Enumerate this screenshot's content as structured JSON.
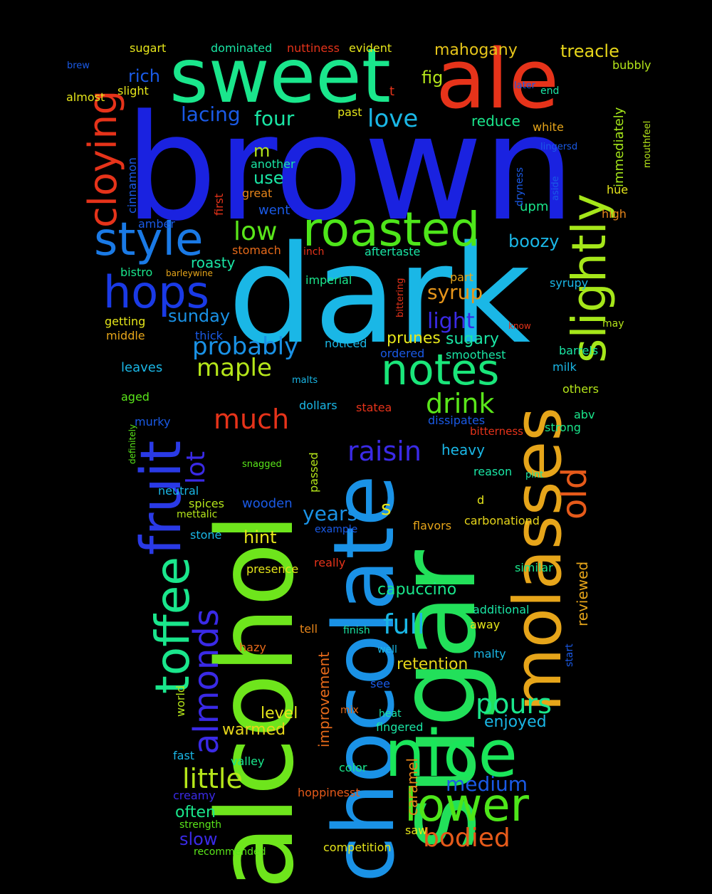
{
  "words": [
    {
      "text": "brown",
      "color": "#1a22e0"
    },
    {
      "text": "dark",
      "color": "#1ab7e6"
    },
    {
      "text": "alcohol",
      "color": "#6ee51c"
    },
    {
      "text": "sugar",
      "color": "#22e05a"
    },
    {
      "text": "chocolate",
      "color": "#1a92e6"
    },
    {
      "text": "sweet",
      "color": "#1ae68c"
    },
    {
      "text": "ale",
      "color": "#e6331a"
    },
    {
      "text": "molasses",
      "color": "#e6a51a"
    },
    {
      "text": "nice",
      "color": "#1ae65a"
    },
    {
      "text": "fruit",
      "color": "#2a3ae6"
    },
    {
      "text": "toffee",
      "color": "#1ae68c"
    },
    {
      "text": "slightly",
      "color": "#a5e61a"
    },
    {
      "text": "roasted",
      "color": "#4ee61a"
    },
    {
      "text": "notes",
      "color": "#1ae67a"
    },
    {
      "text": "lower",
      "color": "#4ee61a"
    },
    {
      "text": "hops",
      "color": "#1a3ae6"
    },
    {
      "text": "style",
      "color": "#1a7ae6"
    },
    {
      "text": "cloying",
      "color": "#e6331a"
    },
    {
      "text": "almonds",
      "color": "#3a2ae6"
    },
    {
      "text": "old",
      "color": "#e65a1a"
    },
    {
      "text": "probably",
      "color": "#1a92e6"
    },
    {
      "text": "maple",
      "color": "#b5e61a"
    },
    {
      "text": "drink",
      "color": "#5ae61a"
    },
    {
      "text": "raisin",
      "color": "#3a2ae6"
    },
    {
      "text": "much",
      "color": "#e6331a"
    },
    {
      "text": "pours",
      "color": "#1ae68c"
    },
    {
      "text": "full",
      "color": "#1ab7e6"
    },
    {
      "text": "little",
      "color": "#b5e61a"
    },
    {
      "text": "bodied",
      "color": "#e65a1a"
    },
    {
      "text": "love",
      "color": "#1ab7e6"
    },
    {
      "text": "low",
      "color": "#5ae61a"
    },
    {
      "text": "lot",
      "color": "#3a2ae6"
    },
    {
      "text": "medium",
      "color": "#1a5ae6"
    },
    {
      "text": "syrup",
      "color": "#e6951a"
    },
    {
      "text": "years",
      "color": "#1a92e6"
    },
    {
      "text": "s",
      "color": "#e6e61a"
    },
    {
      "text": "light",
      "color": "#3a2ae6"
    },
    {
      "text": "lacing",
      "color": "#1a5ae6"
    },
    {
      "text": "four",
      "color": "#1ae6a5"
    },
    {
      "text": "treacle",
      "color": "#e6d51a"
    },
    {
      "text": "mahogany",
      "color": "#e6c51a"
    },
    {
      "text": "m",
      "color": "#b5e61a"
    },
    {
      "text": "use",
      "color": "#1ae6a5"
    },
    {
      "text": "sunday",
      "color": "#1a92e6"
    },
    {
      "text": "boozy",
      "color": "#1ab7e6"
    },
    {
      "text": "rich",
      "color": "#1a5ae6"
    },
    {
      "text": "fig",
      "color": "#b5e61a"
    },
    {
      "text": "prunes",
      "color": "#e6e61a"
    },
    {
      "text": "sugary",
      "color": "#1ae6a5"
    },
    {
      "text": "heavy",
      "color": "#1ab7e6"
    },
    {
      "text": "hint",
      "color": "#e6e61a"
    },
    {
      "text": "capuccino",
      "color": "#1ae68c"
    },
    {
      "text": "retention",
      "color": "#e6d51a"
    },
    {
      "text": "enjoyed",
      "color": "#1ab7e6"
    },
    {
      "text": "level",
      "color": "#e6e61a"
    },
    {
      "text": "warmed",
      "color": "#e6d51a"
    },
    {
      "text": "wooden",
      "color": "#1a5ae6"
    },
    {
      "text": "roasty",
      "color": "#1ae6a5"
    },
    {
      "text": "immediately",
      "color": "#a5e61a"
    },
    {
      "text": "reviewed",
      "color": "#e6a51a"
    },
    {
      "text": "improvement",
      "color": "#e66a1a"
    },
    {
      "text": "caramel",
      "color": "#e6851a"
    },
    {
      "text": "often",
      "color": "#1ae68c"
    },
    {
      "text": "slow",
      "color": "#3a2ae6"
    },
    {
      "text": "upm",
      "color": "#1ae68c"
    },
    {
      "text": "reduce",
      "color": "#1ae68c"
    },
    {
      "text": "went",
      "color": "#1a5ae6"
    },
    {
      "text": "dominated",
      "color": "#1ae6a5"
    },
    {
      "text": "nuttiness",
      "color": "#e6331a"
    },
    {
      "text": "evident",
      "color": "#e6e61a"
    },
    {
      "text": "sugart",
      "color": "#e6e61a"
    },
    {
      "text": "brew",
      "color": "#1a5ae6"
    },
    {
      "text": "almost",
      "color": "#e6e61a"
    },
    {
      "text": "slight",
      "color": "#e6e61a"
    },
    {
      "text": "t",
      "color": "#e6331a"
    },
    {
      "text": "past",
      "color": "#e6e61a"
    },
    {
      "text": "later",
      "color": "#1a5ae6"
    },
    {
      "text": "end",
      "color": "#1ae6a5"
    },
    {
      "text": "bubbly",
      "color": "#b5e61a"
    },
    {
      "text": "white",
      "color": "#e6a51a"
    },
    {
      "text": "mouthfeel",
      "color": "#b5e61a"
    },
    {
      "text": "lingersd",
      "color": "#1a5ae6"
    },
    {
      "text": "cinnamon",
      "color": "#1a5ae6"
    },
    {
      "text": "first",
      "color": "#e6331a"
    },
    {
      "text": "another",
      "color": "#1ae6a5"
    },
    {
      "text": "great",
      "color": "#e6851a"
    },
    {
      "text": "dryness",
      "color": "#1a5ae6"
    },
    {
      "text": "aside",
      "color": "#1a5ae6"
    },
    {
      "text": "hue",
      "color": "#e6e61a"
    },
    {
      "text": "high",
      "color": "#e6851a"
    },
    {
      "text": "amber",
      "color": "#1a5ae6"
    },
    {
      "text": "stomach",
      "color": "#e66a1a"
    },
    {
      "text": "inch",
      "color": "#e6331a"
    },
    {
      "text": "aftertaste",
      "color": "#1ae6a5"
    },
    {
      "text": "bistro",
      "color": "#1ae68c"
    },
    {
      "text": "barleywine",
      "color": "#e6a51a"
    },
    {
      "text": "imperial",
      "color": "#1ae68c"
    },
    {
      "text": "part",
      "color": "#e6a51a"
    },
    {
      "text": "syrupy",
      "color": "#1ab7e6"
    },
    {
      "text": "bittering",
      "color": "#e6331a"
    },
    {
      "text": "getting",
      "color": "#e6e61a"
    },
    {
      "text": "middle",
      "color": "#e6a51a"
    },
    {
      "text": "thick",
      "color": "#1a5ae6"
    },
    {
      "text": "noticed",
      "color": "#1ab7e6"
    },
    {
      "text": "know",
      "color": "#e6331a"
    },
    {
      "text": "may",
      "color": "#b5e61a"
    },
    {
      "text": "ordered",
      "color": "#1a5ae6"
    },
    {
      "text": "smoothest",
      "color": "#1ae6a5"
    },
    {
      "text": "barrels",
      "color": "#1ae6a5"
    },
    {
      "text": "leaves",
      "color": "#1ab7e6"
    },
    {
      "text": "milk",
      "color": "#1ab7e6"
    },
    {
      "text": "malts",
      "color": "#1ab7e6"
    },
    {
      "text": "aged",
      "color": "#5ae61a"
    },
    {
      "text": "others",
      "color": "#b5e61a"
    },
    {
      "text": "definitely",
      "color": "#5ae61a"
    },
    {
      "text": "dollars",
      "color": "#1ab7e6"
    },
    {
      "text": "statea",
      "color": "#e6331a"
    },
    {
      "text": "abv",
      "color": "#1ae68c"
    },
    {
      "text": "murky",
      "color": "#1a5ae6"
    },
    {
      "text": "dissipates",
      "color": "#1a5ae6"
    },
    {
      "text": "strong",
      "color": "#1ae68c"
    },
    {
      "text": "bitterness",
      "color": "#e6331a"
    },
    {
      "text": "snagged",
      "color": "#5ae61a"
    },
    {
      "text": "passed",
      "color": "#b5e61a"
    },
    {
      "text": "reason",
      "color": "#1ae6a5"
    },
    {
      "text": "pint",
      "color": "#1ae6a5"
    },
    {
      "text": "neutral",
      "color": "#1ab7e6"
    },
    {
      "text": "d",
      "color": "#e6e61a"
    },
    {
      "text": "spices",
      "color": "#b5e61a"
    },
    {
      "text": "mettalic",
      "color": "#b5e61a"
    },
    {
      "text": "carbonationd",
      "color": "#e6d51a"
    },
    {
      "text": "example",
      "color": "#1a5ae6"
    },
    {
      "text": "flavors",
      "color": "#e6a51a"
    },
    {
      "text": "stone",
      "color": "#1ab7e6"
    },
    {
      "text": "presence",
      "color": "#e6e61a"
    },
    {
      "text": "really",
      "color": "#e6331a"
    },
    {
      "text": "similar",
      "color": "#1ae68c"
    },
    {
      "text": "additional",
      "color": "#1ae6a5"
    },
    {
      "text": "tell",
      "color": "#e6851a"
    },
    {
      "text": "finish",
      "color": "#1ae6a5"
    },
    {
      "text": "away",
      "color": "#e6e61a"
    },
    {
      "text": "start",
      "color": "#1a5ae6"
    },
    {
      "text": "hazy",
      "color": "#e66a1a"
    },
    {
      "text": "well",
      "color": "#1ab7e6"
    },
    {
      "text": "malty",
      "color": "#1ab7e6"
    },
    {
      "text": "world",
      "color": "#b5e61a"
    },
    {
      "text": "see",
      "color": "#1a5ae6"
    },
    {
      "text": "mix",
      "color": "#e66a1a"
    },
    {
      "text": "heat",
      "color": "#1ae6a5"
    },
    {
      "text": "fingered",
      "color": "#1ae6a5"
    },
    {
      "text": "fast",
      "color": "#1ab7e6"
    },
    {
      "text": "valley",
      "color": "#1ae68c"
    },
    {
      "text": "color",
      "color": "#1ae68c"
    },
    {
      "text": "hoppinesst",
      "color": "#e65a1a"
    },
    {
      "text": "creamy",
      "color": "#3a2ae6"
    },
    {
      "text": "strength",
      "color": "#5ae61a"
    },
    {
      "text": "saw",
      "color": "#e6e61a"
    },
    {
      "text": "competition",
      "color": "#e6e61a"
    },
    {
      "text": "recommended",
      "color": "#5ae61a"
    }
  ]
}
